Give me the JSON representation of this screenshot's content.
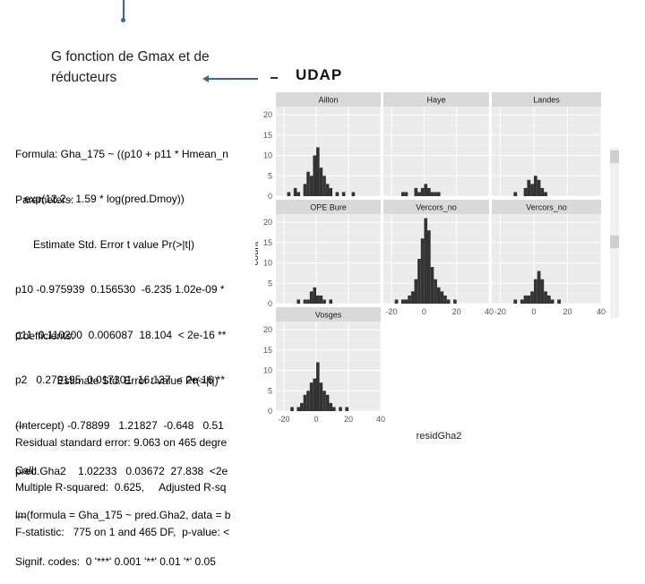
{
  "slide": {
    "title_line1": "G fonction de Gmax et de",
    "title_line2": "réducteurs",
    "heading": "UDAP"
  },
  "text_blocks": {
    "formula_lines": [
      "Formula: Gha_175 ~ ((p10 + p11 * Hmean_n",
      "   exp(12.2 - 1.59 * log(pred.Dmoy))"
    ],
    "parameters_lines": [
      "Parameters:",
      "      Estimate Std. Error t value Pr(>|t|)",
      "p10 -0.975939  0.156530  -6.235 1.02e-09 *",
      "p11  0.110200  0.006087  18.104  < 2e-16 **",
      "p2   0.279195  0.017301  16.137  < 2e-16 **",
      "---",
      "Call:",
      "lm(formula = Gha_175 ~ pred.Gha2, data = b"
    ],
    "coefficients_lines": [
      "Coefficients:",
      "              Estimate Std. Error t value Pr(>|t|)",
      "(Intercept) -0.78899   1.21827  -0.648   0.51",
      "pred.Gha2    1.02233   0.03672  27.838  <2e",
      "---",
      "Signif. codes:  0 '***' 0.001 '**' 0.01 '*' 0.05"
    ],
    "summary_lines": [
      "Residual standard error: 9.063 on 465 degre",
      "Multiple R-squared:  0.625,     Adjusted R-sq",
      "F-statistic:   775 on 1 and 465 DF,  p-value: <"
    ]
  },
  "chart_data": {
    "type": "bar",
    "subtype": "faceted histogram",
    "xlabel": "residGha2",
    "ylabel": "count",
    "xlim": [
      -25,
      40
    ],
    "ylim": [
      0,
      22
    ],
    "x_ticks": [
      -20,
      0,
      20,
      40
    ],
    "y_ticks": [
      0,
      5,
      10,
      15,
      20
    ],
    "grid": true,
    "bin_width": 2,
    "facets": [
      {
        "name": "Aillon",
        "bins": [
          [
            -18,
            1
          ],
          [
            -14,
            2
          ],
          [
            -12,
            1
          ],
          [
            -8,
            3
          ],
          [
            -6,
            6
          ],
          [
            -4,
            5
          ],
          [
            -2,
            10
          ],
          [
            0,
            12
          ],
          [
            2,
            7
          ],
          [
            4,
            5
          ],
          [
            6,
            3
          ],
          [
            8,
            2
          ],
          [
            12,
            1
          ],
          [
            16,
            1
          ],
          [
            22,
            1
          ]
        ]
      },
      {
        "name": "Haye",
        "bins": [
          [
            -14,
            1
          ],
          [
            -12,
            1
          ],
          [
            -6,
            2
          ],
          [
            -4,
            1
          ],
          [
            -2,
            2
          ],
          [
            0,
            3
          ],
          [
            2,
            2
          ],
          [
            4,
            1
          ],
          [
            6,
            1
          ],
          [
            8,
            1
          ]
        ]
      },
      {
        "name": "Landes",
        "bins": [
          [
            -12,
            1
          ],
          [
            -6,
            2
          ],
          [
            -4,
            4
          ],
          [
            -2,
            3
          ],
          [
            0,
            5
          ],
          [
            2,
            4
          ],
          [
            4,
            2
          ],
          [
            6,
            1
          ]
        ]
      },
      {
        "name": "OPE Bure",
        "bins": [
          [
            -12,
            1
          ],
          [
            -8,
            1
          ],
          [
            -6,
            1
          ],
          [
            -4,
            3
          ],
          [
            -2,
            4
          ],
          [
            0,
            2
          ],
          [
            2,
            2
          ],
          [
            4,
            1
          ],
          [
            8,
            1
          ]
        ]
      },
      {
        "name": "Vercors_no",
        "bins": [
          [
            -18,
            1
          ],
          [
            -14,
            1
          ],
          [
            -12,
            1
          ],
          [
            -10,
            2
          ],
          [
            -8,
            3
          ],
          [
            -6,
            6
          ],
          [
            -4,
            11
          ],
          [
            -2,
            16
          ],
          [
            0,
            21
          ],
          [
            2,
            18
          ],
          [
            4,
            9
          ],
          [
            6,
            6
          ],
          [
            8,
            4
          ],
          [
            10,
            3
          ],
          [
            12,
            2
          ],
          [
            14,
            1
          ],
          [
            18,
            1
          ]
        ]
      },
      {
        "name": "Vercors_no",
        "bins": [
          [
            -12,
            1
          ],
          [
            -8,
            1
          ],
          [
            -6,
            2
          ],
          [
            -4,
            2
          ],
          [
            -2,
            3
          ],
          [
            0,
            6
          ],
          [
            2,
            8
          ],
          [
            4,
            6
          ],
          [
            6,
            3
          ],
          [
            8,
            2
          ],
          [
            10,
            1
          ],
          [
            14,
            1
          ]
        ]
      },
      {
        "name": "Vosges",
        "bins": [
          [
            -16,
            1
          ],
          [
            -12,
            1
          ],
          [
            -10,
            2
          ],
          [
            -8,
            4
          ],
          [
            -6,
            5
          ],
          [
            -4,
            7
          ],
          [
            -2,
            8
          ],
          [
            0,
            12
          ],
          [
            2,
            7
          ],
          [
            4,
            5
          ],
          [
            6,
            4
          ],
          [
            8,
            2
          ],
          [
            10,
            1
          ],
          [
            14,
            1
          ],
          [
            18,
            1
          ]
        ]
      }
    ]
  }
}
